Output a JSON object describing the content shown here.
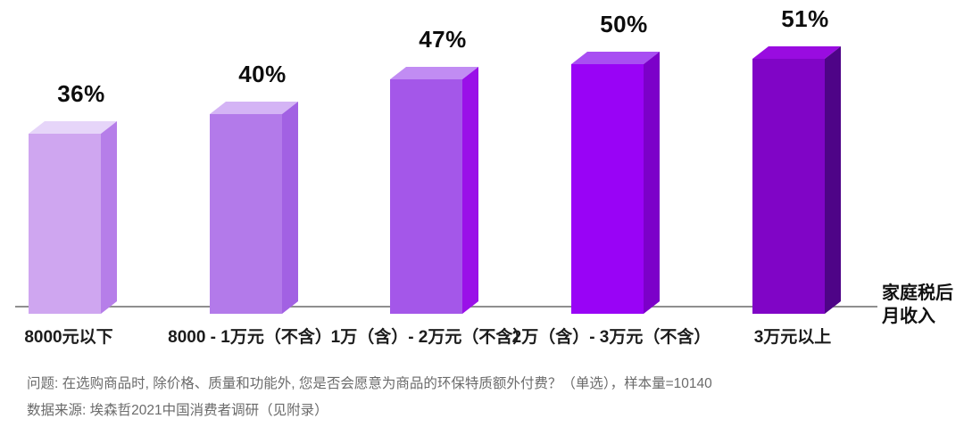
{
  "chart_data": {
    "type": "bar",
    "variant": "3d-extruded-column",
    "title": "",
    "categories": [
      "8000元以下",
      "8000 - 1万元（不含）",
      "1万（含）- 2万元（不含）",
      "2万（含）- 3万元（不含）",
      "3万元以上"
    ],
    "values": [
      36,
      40,
      47,
      50,
      51
    ],
    "value_labels": [
      "36%",
      "40%",
      "47%",
      "50%",
      "51%"
    ],
    "unit": "%",
    "ylim": [
      0,
      55
    ],
    "grid": false,
    "legend": false,
    "x_axis_label": {
      "line1": "家庭税后",
      "line2": "月收入"
    },
    "axis_line_color": "#8f8f8f",
    "bar_colors": [
      {
        "front": "#cfa6f0",
        "top": "#e6d5f9",
        "side": "#b67ee9"
      },
      {
        "front": "#b37aea",
        "top": "#d4b4f5",
        "side": "#a261e3"
      },
      {
        "front": "#a457e9",
        "top": "#c18cf3",
        "side": "#9a10e8"
      },
      {
        "front": "#9903f6",
        "top": "#a84ef2",
        "side": "#7c00c9"
      },
      {
        "front": "#8005c6",
        "top": "#990ce0",
        "side": "#4e0487"
      }
    ]
  },
  "footnotes": {
    "question": "问题: 在选购商品时, 除价格、质量和功能外, 您是否会愿意为商品的环保特质额外付费？（单选），样本量=10140",
    "source": "数据来源: 埃森哲2021中国消费者调研（见附录）"
  }
}
